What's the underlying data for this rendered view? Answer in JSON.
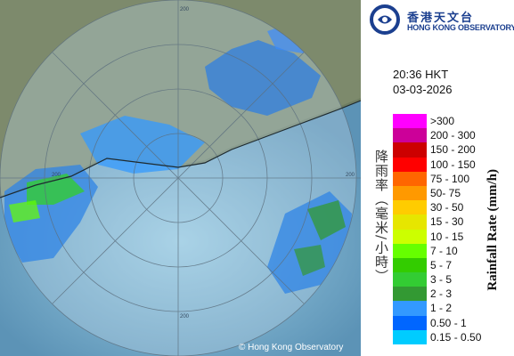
{
  "brand": {
    "name_cn": "香港天文台",
    "name_en": "HONG KONG OBSERVATORY",
    "logo_icon": "hko-logo-icon"
  },
  "timestamp": {
    "time": "20:36 HKT",
    "date": "03-03-2026"
  },
  "legend": {
    "title_cn": "降雨率（毫米/小時）",
    "title_en": "Rainfall Rate (mm/h)",
    "classes": [
      {
        "label": ">300",
        "color": "#ff00ff"
      },
      {
        "label": "200 - 300",
        "color": "#cc0099"
      },
      {
        "label": "150 - 200",
        "color": "#cc0000"
      },
      {
        "label": "100 - 150",
        "color": "#ff0000"
      },
      {
        "label": "75 - 100",
        "color": "#ff6600"
      },
      {
        "label": "50- 75",
        "color": "#ff9900"
      },
      {
        "label": "30 - 50",
        "color": "#ffcc00"
      },
      {
        "label": "15 - 30",
        "color": "#e6e600"
      },
      {
        "label": "10 - 15",
        "color": "#ccff00"
      },
      {
        "label": "7 - 10",
        "color": "#66ff00"
      },
      {
        "label": "5 - 7",
        "color": "#33cc00"
      },
      {
        "label": "3 - 5",
        "color": "#33cc33"
      },
      {
        "label": "2 - 3",
        "color": "#339933"
      },
      {
        "label": "1 - 2",
        "color": "#3399ff"
      },
      {
        "label": "0.50 - 1",
        "color": "#0066ff"
      },
      {
        "label": "0.15 - 0.50",
        "color": "#00ccff"
      }
    ]
  },
  "map": {
    "credit": "© Hong Kong Observatory",
    "range_ring_labels": [
      "200",
      "200",
      "200",
      "200"
    ],
    "sea_color": "#5b8db0",
    "land_color": "#7c8a6d",
    "radar_disc_tint": "#a9c4d8"
  }
}
